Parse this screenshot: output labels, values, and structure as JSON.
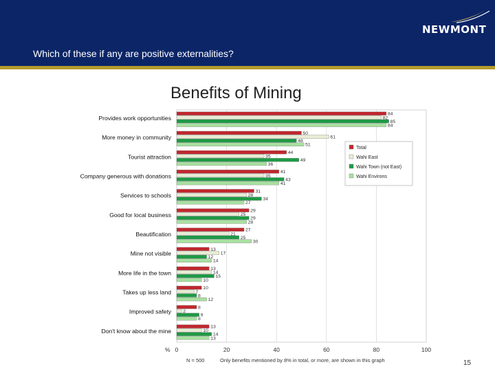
{
  "header": {
    "question": "Which of these if any are positive externalities?",
    "logo_text": "NEWMONT",
    "colors": {
      "band": "#0b2567",
      "rule": "#b59a2c",
      "text": "#ffffff"
    }
  },
  "page_number": "15",
  "chart_data": {
    "type": "bar",
    "orientation": "horizontal",
    "title": "Benefits of Mining",
    "xlabel": "%",
    "xlim": [
      0,
      100
    ],
    "xticks": [
      0,
      20,
      40,
      60,
      80,
      100
    ],
    "legend_position": "top-right",
    "footnote_n": "N = 500",
    "footnote": "Only benefits mentioned by 8% in total, or more, are shown in this graph",
    "categories": [
      "Provides work opportunities",
      "More money in community",
      "Tourist attraction",
      "Company generous with donations",
      "Services to schools",
      "Good for local business",
      "Beautification",
      "Mine not visible",
      "More life in the town",
      "Takes up less land",
      "Improved safety",
      "Don't know about the mine"
    ],
    "series": [
      {
        "name": "Total",
        "color": "#c0272d",
        "values": [
          84,
          50,
          44,
          41,
          31,
          29,
          27,
          13,
          13,
          10,
          8,
          13
        ]
      },
      {
        "name": "Wahi East",
        "color": "#e8ecd4",
        "values": [
          82,
          61,
          35,
          35,
          28,
          25,
          21,
          17,
          14,
          7,
          2,
          10
        ]
      },
      {
        "name": "Wahi Town (not East)",
        "color": "#1d9a45",
        "values": [
          85,
          48,
          49,
          43,
          34,
          29,
          25,
          12,
          15,
          8,
          9,
          14
        ]
      },
      {
        "name": "Wahi Environs",
        "color": "#a8e0a0",
        "values": [
          84,
          51,
          36,
          41,
          27,
          28,
          30,
          14,
          10,
          12,
          8,
          13
        ]
      }
    ]
  }
}
